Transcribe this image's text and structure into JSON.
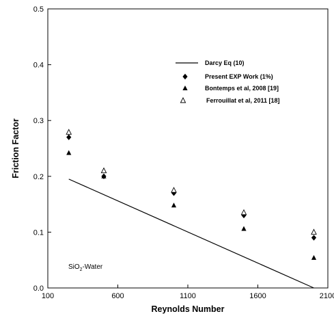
{
  "chart_data": {
    "type": "scatter",
    "xlabel": "Reynolds Number",
    "ylabel": "Friction Factor",
    "xlim": [
      100,
      2100
    ],
    "ylim": [
      0,
      0.5
    ],
    "xticks": [
      100,
      600,
      1100,
      1600,
      2100
    ],
    "yticks": [
      0.0,
      0.1,
      0.2,
      0.3,
      0.4,
      0.5
    ],
    "xtick_labels": [
      "100",
      "600",
      "1100",
      "1600",
      "2100"
    ],
    "ytick_labels": [
      "0.0",
      "0.1",
      "0.2",
      "0.3",
      "0.4",
      "0.5"
    ],
    "grid": false,
    "legend_position": "top-right",
    "series": [
      {
        "name": "Darcy Eq (10)",
        "kind": "line",
        "marker": "none",
        "color": "#000000",
        "x": [
          250,
          2000
        ],
        "y": [
          0.195,
          0.0
        ]
      },
      {
        "name": "Present EXP Work (1%)",
        "kind": "scatter",
        "marker": "diamond-filled",
        "color": "#000000",
        "x": [
          250,
          500,
          1000,
          1500,
          2000
        ],
        "y": [
          0.27,
          0.2,
          0.17,
          0.13,
          0.09
        ]
      },
      {
        "name": "Bontemps et al, 2008 [19]",
        "kind": "scatter",
        "marker": "triangle-filled",
        "color": "#000000",
        "x": [
          250,
          500,
          1000,
          1500,
          2000
        ],
        "y": [
          0.242,
          0.2,
          0.148,
          0.106,
          0.054
        ]
      },
      {
        "name": "Ferrouillat et al, 2011 [18]",
        "kind": "scatter",
        "marker": "triangle-open",
        "color": "#000000",
        "x": [
          250,
          500,
          1000,
          1500,
          2000
        ],
        "y": [
          0.279,
          0.21,
          0.175,
          0.135,
          0.1
        ]
      }
    ],
    "annotations": [
      {
        "text_main": "SiO",
        "text_sub": "2",
        "text_tail": "-Water"
      }
    ]
  }
}
